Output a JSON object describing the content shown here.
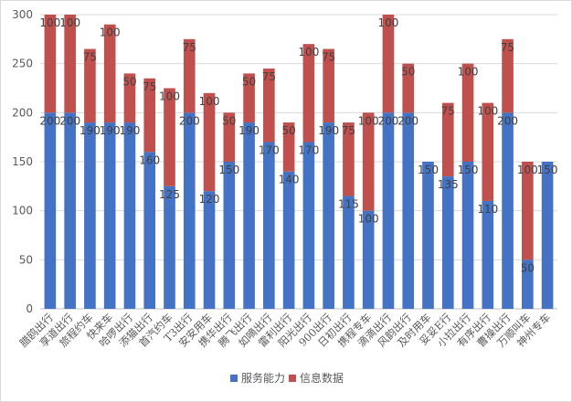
{
  "chart_data": {
    "type": "bar",
    "stacked": true,
    "categories": [
      "腊鸥出行",
      "享道出行",
      "旅程约车",
      "快来车",
      "哈啰出行",
      "添猫出行",
      "首汽约车",
      "T3出行",
      "安安用车",
      "携华出行",
      "腾飞出行",
      "如嘀出行",
      "雷利出行",
      "阳光出行",
      "900出行",
      "日初出行",
      "携程专车",
      "滴滴出行",
      "风韵出行",
      "及时用车",
      "妥妥E行",
      "小拉出行",
      "有序出行",
      "曹操出行",
      "万顺叫车",
      "神州专车"
    ],
    "series": [
      {
        "name": "服务能力",
        "color": "#4472c4",
        "values": [
          200,
          200,
          190,
          190,
          190,
          160,
          125,
          200,
          120,
          150,
          190,
          170,
          140,
          170,
          190,
          115,
          100,
          200,
          200,
          150,
          135,
          150,
          110,
          200,
          50,
          150
        ]
      },
      {
        "name": "信息数据",
        "color": "#c0504d",
        "values": [
          100,
          100,
          75,
          100,
          50,
          75,
          100,
          75,
          100,
          50,
          50,
          75,
          50,
          100,
          75,
          75,
          100,
          100,
          50,
          0,
          75,
          100,
          100,
          75,
          100,
          0
        ]
      }
    ],
    "data_labels": [
      [
        "200",
        "200",
        "190",
        "190",
        "190",
        "160",
        "125",
        "200",
        "120",
        "150",
        "190",
        "170",
        "140",
        "170",
        "190",
        "115",
        "100",
        "200",
        "200",
        "150",
        "135",
        "150",
        "110",
        "200",
        "50",
        "150"
      ],
      [
        "100",
        "100",
        "75",
        "100",
        "50",
        "75",
        "100",
        "75",
        "100",
        "50",
        "50",
        "75",
        "50",
        "100",
        "75",
        "75",
        "100",
        "100",
        "50",
        "0",
        "75",
        "100",
        "100",
        "75",
        "100",
        "0"
      ]
    ],
    "yticks": [
      "0",
      "50",
      "100",
      "150",
      "200",
      "250",
      "300"
    ],
    "ylim": [
      0,
      300
    ],
    "grid": true,
    "legend_position": "bottom",
    "title": "",
    "xlabel": "",
    "ylabel": ""
  }
}
